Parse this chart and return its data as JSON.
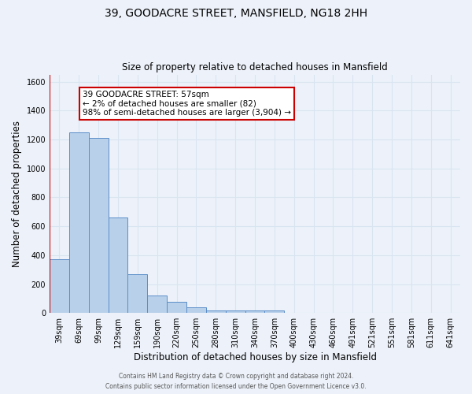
{
  "title": "39, GOODACRE STREET, MANSFIELD, NG18 2HH",
  "subtitle": "Size of property relative to detached houses in Mansfield",
  "xlabel": "Distribution of detached houses by size in Mansfield",
  "ylabel": "Number of detached properties",
  "bin_labels": [
    "39sqm",
    "69sqm",
    "99sqm",
    "129sqm",
    "159sqm",
    "190sqm",
    "220sqm",
    "250sqm",
    "280sqm",
    "310sqm",
    "340sqm",
    "370sqm",
    "400sqm",
    "430sqm",
    "460sqm",
    "491sqm",
    "521sqm",
    "551sqm",
    "581sqm",
    "611sqm",
    "641sqm"
  ],
  "bar_values": [
    370,
    1250,
    1210,
    660,
    270,
    120,
    75,
    40,
    20,
    15,
    15,
    15,
    0,
    0,
    0,
    0,
    0,
    0,
    0,
    0,
    0
  ],
  "bar_color": "#b8d0ea",
  "bar_edge_color": "#5b8dc8",
  "highlight_line_color": "#cc0000",
  "annotation_text": "39 GOODACRE STREET: 57sqm\n← 2% of detached houses are smaller (82)\n98% of semi-detached houses are larger (3,904) →",
  "annotation_box_color": "white",
  "annotation_box_edge_color": "#cc0000",
  "ylim": [
    0,
    1650
  ],
  "yticks": [
    0,
    200,
    400,
    600,
    800,
    1000,
    1200,
    1400,
    1600
  ],
  "background_color": "#edf2fa",
  "grid_color": "#d8e4f0",
  "footer_line1": "Contains HM Land Registry data © Crown copyright and database right 2024.",
  "footer_line2": "Contains public sector information licensed under the Open Government Licence v3.0."
}
